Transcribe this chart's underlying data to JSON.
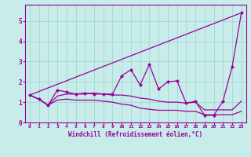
{
  "title": "",
  "xlabel": "Windchill (Refroidissement éolien,°C)",
  "ylabel": "",
  "bg_color": "#c8ecea",
  "line_color": "#990099",
  "grid_color": "#a0d8d0",
  "spine_color": "#990099",
  "xlim": [
    -0.5,
    23.5
  ],
  "ylim": [
    0,
    5.8
  ],
  "yticks": [
    0,
    1,
    2,
    3,
    4,
    5
  ],
  "xticks": [
    0,
    1,
    2,
    3,
    4,
    5,
    6,
    7,
    8,
    9,
    10,
    11,
    12,
    13,
    14,
    15,
    16,
    17,
    18,
    19,
    20,
    21,
    22,
    23
  ],
  "series_main": {
    "x": [
      0,
      1,
      2,
      3,
      4,
      5,
      6,
      7,
      8,
      9,
      10,
      11,
      12,
      13,
      14,
      15,
      16,
      17,
      18,
      19,
      20,
      21,
      22,
      23
    ],
    "y": [
      1.35,
      1.15,
      0.85,
      1.6,
      1.5,
      1.4,
      1.45,
      1.4,
      1.4,
      1.4,
      2.3,
      2.6,
      1.85,
      2.85,
      1.65,
      2.0,
      2.05,
      0.95,
      1.05,
      0.35,
      0.35,
      1.05,
      2.75,
      5.4
    ]
  },
  "series_diag": {
    "x": [
      0,
      23
    ],
    "y": [
      1.35,
      5.4
    ]
  },
  "series_upper": {
    "x": [
      0,
      1,
      2,
      3,
      4,
      5,
      6,
      7,
      8,
      9,
      10,
      11,
      12,
      13,
      14,
      15,
      16,
      17,
      18,
      19,
      20,
      21,
      22,
      23
    ],
    "y": [
      1.35,
      1.15,
      0.85,
      1.3,
      1.4,
      1.4,
      1.4,
      1.45,
      1.4,
      1.35,
      1.35,
      1.3,
      1.2,
      1.15,
      1.05,
      1.0,
      1.0,
      0.95,
      1.0,
      0.62,
      0.62,
      0.62,
      0.62,
      1.05
    ]
  },
  "series_lower": {
    "x": [
      0,
      1,
      2,
      3,
      4,
      5,
      6,
      7,
      8,
      9,
      10,
      11,
      12,
      13,
      14,
      15,
      16,
      17,
      18,
      19,
      20,
      21,
      22,
      23
    ],
    "y": [
      1.35,
      1.15,
      0.85,
      1.1,
      1.15,
      1.1,
      1.1,
      1.1,
      1.05,
      1.0,
      0.9,
      0.85,
      0.7,
      0.65,
      0.6,
      0.6,
      0.6,
      0.55,
      0.55,
      0.38,
      0.38,
      0.38,
      0.38,
      0.55
    ]
  }
}
